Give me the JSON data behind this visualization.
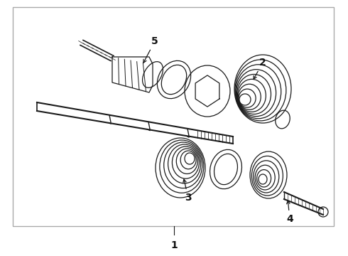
{
  "bg_color": "#ffffff",
  "border_color": "#aaaaaa",
  "line_color": "#1a1a1a",
  "label_color": "#111111",
  "font_size": 9,
  "lw": 0.9
}
